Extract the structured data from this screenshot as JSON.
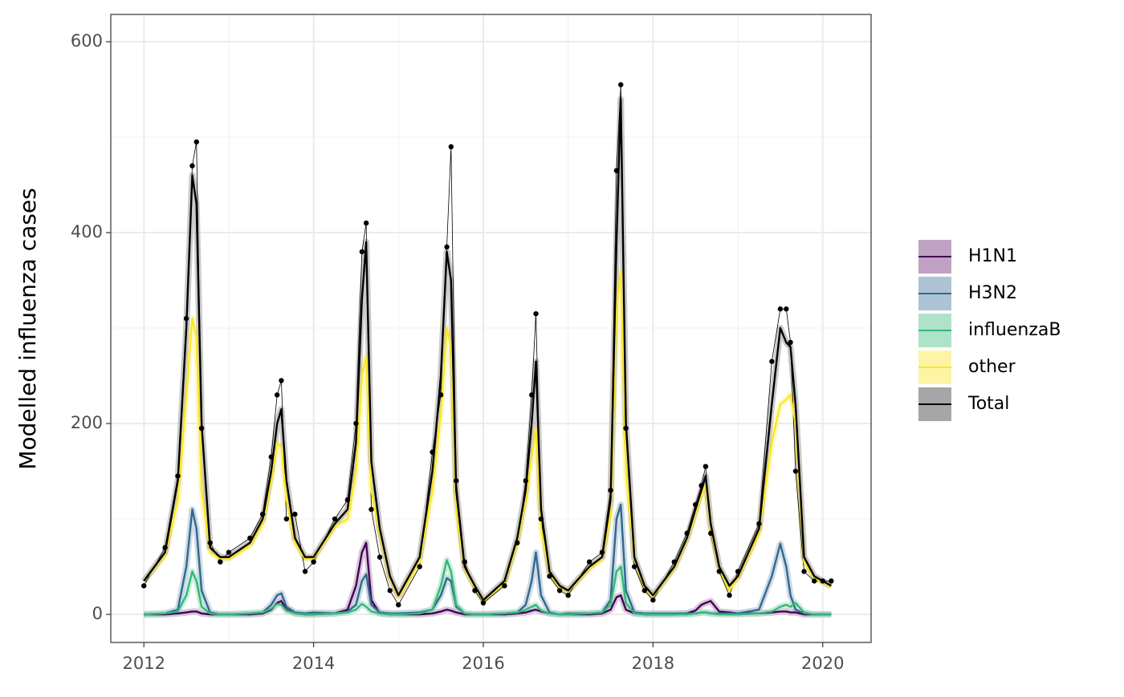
{
  "chart_data": {
    "type": "line",
    "ylabel": "Modelled influenza cases",
    "xlim": [
      2011.61,
      2020.57
    ],
    "ylim": [
      -29.4,
      628.6
    ],
    "xticks": [
      2012,
      2014,
      2016,
      2018,
      2020
    ],
    "xminor": [
      2013,
      2015,
      2017,
      2019
    ],
    "yticks": [
      0,
      200,
      400,
      600
    ],
    "yminor": [
      100,
      300,
      500
    ],
    "grid": true,
    "legend": "right",
    "x": [
      2012.0,
      2012.25,
      2012.4,
      2012.5,
      2012.57,
      2012.62,
      2012.68,
      2012.78,
      2012.9,
      2013.0,
      2013.25,
      2013.4,
      2013.5,
      2013.57,
      2013.62,
      2013.68,
      2013.78,
      2013.9,
      2014.0,
      2014.25,
      2014.4,
      2014.5,
      2014.57,
      2014.62,
      2014.68,
      2014.78,
      2014.9,
      2015.0,
      2015.25,
      2015.4,
      2015.5,
      2015.57,
      2015.62,
      2015.68,
      2015.78,
      2015.9,
      2016.0,
      2016.25,
      2016.4,
      2016.5,
      2016.57,
      2016.62,
      2016.68,
      2016.78,
      2016.9,
      2017.0,
      2017.25,
      2017.4,
      2017.5,
      2017.57,
      2017.62,
      2017.68,
      2017.78,
      2017.9,
      2018.0,
      2018.25,
      2018.4,
      2018.5,
      2018.57,
      2018.62,
      2018.68,
      2018.78,
      2018.9,
      2019.0,
      2019.25,
      2019.4,
      2019.5,
      2019.57,
      2019.62,
      2019.68,
      2019.78,
      2019.9,
      2020.0,
      2020.1
    ],
    "series": [
      {
        "name": "H1N1",
        "color": "#440154",
        "fill_color": "#c0a3c4",
        "values": [
          0,
          0,
          1,
          2,
          3,
          3,
          1,
          0,
          0,
          0,
          0,
          1,
          5,
          12,
          14,
          5,
          1,
          0,
          0,
          1,
          5,
          30,
          65,
          75,
          15,
          1,
          0,
          0,
          0,
          1,
          3,
          5,
          4,
          2,
          0,
          0,
          0,
          0,
          1,
          2,
          4,
          5,
          3,
          1,
          0,
          0,
          0,
          1,
          5,
          18,
          20,
          5,
          1,
          0,
          0,
          0,
          1,
          4,
          10,
          12,
          14,
          3,
          2,
          1,
          1,
          2,
          3,
          3,
          2,
          2,
          0,
          0,
          0,
          0
        ]
      },
      {
        "name": "H3N2",
        "color": "#31688e",
        "fill_color": "#adc3d4",
        "values": [
          0,
          1,
          5,
          50,
          110,
          90,
          25,
          2,
          0,
          0,
          1,
          2,
          10,
          20,
          22,
          8,
          2,
          1,
          2,
          1,
          3,
          10,
          35,
          42,
          10,
          2,
          1,
          1,
          2,
          5,
          20,
          38,
          35,
          8,
          1,
          0,
          0,
          1,
          2,
          10,
          35,
          65,
          20,
          2,
          0,
          1,
          1,
          2,
          15,
          100,
          115,
          25,
          2,
          1,
          1,
          1,
          1,
          1,
          2,
          2,
          1,
          1,
          1,
          1,
          5,
          40,
          74,
          50,
          20,
          5,
          1,
          0,
          0,
          0
        ]
      },
      {
        "name": "influenzaB",
        "color": "#35b779",
        "fill_color": "#aee2c9",
        "values": [
          0,
          1,
          3,
          20,
          45,
          35,
          8,
          1,
          0,
          0,
          1,
          2,
          6,
          11,
          10,
          4,
          1,
          0,
          0,
          1,
          2,
          5,
          11,
          8,
          3,
          1,
          0,
          0,
          1,
          5,
          30,
          57,
          45,
          10,
          1,
          0,
          0,
          1,
          2,
          5,
          8,
          10,
          4,
          1,
          0,
          0,
          1,
          2,
          10,
          45,
          50,
          12,
          1,
          0,
          0,
          0,
          0,
          1,
          2,
          2,
          1,
          0,
          0,
          0,
          1,
          3,
          8,
          10,
          8,
          12,
          2,
          0,
          0,
          0
        ]
      },
      {
        "name": "other",
        "color": "#fde725",
        "fill_color": "#fdf4a6",
        "values": [
          35,
          62,
          120,
          230,
          310,
          290,
          130,
          65,
          58,
          58,
          72,
          95,
          140,
          180,
          175,
          120,
          75,
          58,
          58,
          92,
          100,
          150,
          250,
          270,
          130,
          85,
          38,
          18,
          55,
          130,
          210,
          300,
          280,
          110,
          48,
          28,
          14,
          33,
          75,
          120,
          165,
          195,
          90,
          43,
          28,
          24,
          48,
          58,
          105,
          320,
          360,
          150,
          58,
          28,
          19,
          48,
          78,
          105,
          125,
          135,
          90,
          48,
          25,
          38,
          85,
          180,
          220,
          225,
          230,
          200,
          55,
          38,
          33,
          29
        ]
      },
      {
        "name": "Total",
        "color": "#000000",
        "fill_color": "#a6a6a6",
        "values": [
          35,
          65,
          140,
          300,
          460,
          430,
          200,
          70,
          60,
          60,
          75,
          100,
          150,
          200,
          215,
          140,
          80,
          60,
          60,
          95,
          110,
          180,
          330,
          390,
          160,
          90,
          40,
          20,
          60,
          150,
          250,
          380,
          350,
          130,
          50,
          30,
          15,
          35,
          80,
          130,
          200,
          265,
          110,
          45,
          30,
          25,
          50,
          60,
          120,
          390,
          540,
          200,
          60,
          30,
          20,
          50,
          80,
          110,
          130,
          145,
          95,
          50,
          30,
          40,
          90,
          220,
          300,
          285,
          280,
          220,
          60,
          40,
          35,
          30
        ]
      }
    ],
    "observed": {
      "color": "#000000",
      "values": [
        30,
        70,
        145,
        310,
        470,
        495,
        195,
        75,
        55,
        65,
        80,
        105,
        165,
        230,
        245,
        100,
        105,
        45,
        55,
        100,
        120,
        200,
        380,
        410,
        110,
        60,
        25,
        10,
        50,
        170,
        230,
        385,
        490,
        140,
        55,
        25,
        12,
        30,
        75,
        140,
        230,
        315,
        100,
        40,
        25,
        20,
        55,
        65,
        130,
        465,
        555,
        195,
        50,
        25,
        15,
        55,
        85,
        115,
        135,
        155,
        85,
        45,
        20,
        45,
        95,
        265,
        320,
        320,
        285,
        150,
        45,
        35,
        35,
        35
      ]
    }
  }
}
